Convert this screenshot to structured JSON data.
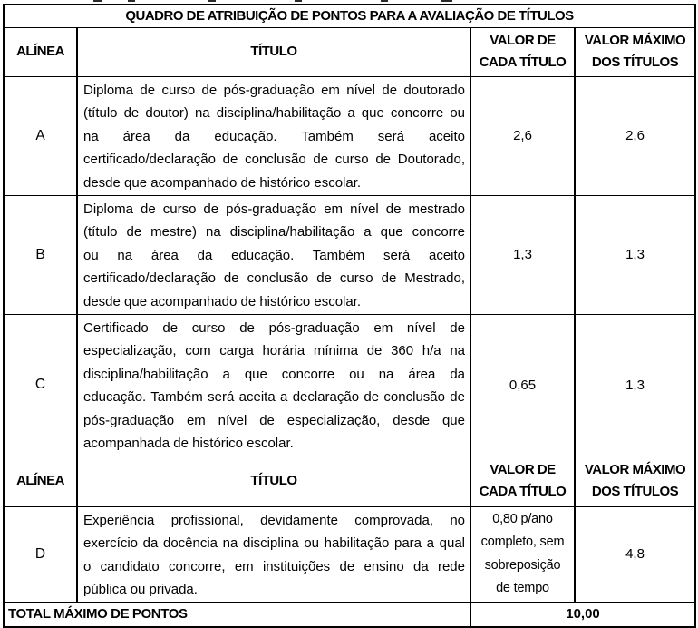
{
  "document": {
    "background": "#ffffff",
    "border_color": "#000000",
    "text_color": "#000000"
  },
  "table": {
    "title": "QUADRO DE ATRIBUIÇÃO DE PONTOS PARA A AVALIAÇÃO DE TÍTULOS",
    "columns": {
      "alinea": "ALÍNEA",
      "titulo": "TÍTULO",
      "valor_cada_titulo_lines": [
        "VALOR DE",
        "CADA TÍTULO"
      ],
      "valor_maximo_lines": [
        "VALOR MÁXIMO",
        "DOS TÍTULOS"
      ]
    },
    "rows": [
      {
        "alinea": "A",
        "titulo_lines": [
          "Diploma de curso de pós-graduação em nível de doutorado",
          "(título de doutor) na disciplina/habilitação a que concorre ou",
          "na área da educação. Também será aceito",
          "certificado/declaração de conclusão de curso de Doutorado,",
          "desde que acompanhado de histórico escolar."
        ],
        "valor_cada_titulo": "2,6",
        "valor_maximo": "2,6"
      },
      {
        "alinea": "B",
        "titulo_lines": [
          "Diploma de curso de pós-graduação em nível de mestrado",
          "(título de mestre) na disciplina/habilitação a que concorre",
          "ou na área da educação. Também será aceito",
          "certificado/declaração de conclusão de curso de Mestrado,",
          "desde que acompanhado de histórico escolar."
        ],
        "valor_cada_titulo": "1,3",
        "valor_maximo": "1,3"
      },
      {
        "alinea": "C",
        "titulo_lines": [
          "Certificado de curso de pós-graduação em nível de",
          "especialização, com carga horária mínima de 360 h/a na",
          "disciplina/habilitação a que concorre ou na área da",
          "educação. Também será aceita a declaração de conclusão de",
          "pós-graduação em nível de especialização, desde que",
          "acompanhada de histórico escolar."
        ],
        "valor_cada_titulo": "0,65",
        "valor_maximo": "1,3"
      }
    ],
    "row_d": {
      "alinea": "D",
      "titulo_lines": [
        "Experiência profissional, devidamente comprovada, no",
        "exercício da docência na disciplina ou habilitação para a qual",
        "o candidato concorre, em instituições de ensino da rede",
        "pública ou privada."
      ],
      "valor_cada_titulo_lines": [
        "0,80 p/ano",
        "completo, sem",
        "sobreposição",
        "de tempo"
      ],
      "valor_maximo": "4,8"
    },
    "footer": {
      "label": "TOTAL MÁXIMO DE PONTOS",
      "value": "10,00"
    }
  }
}
